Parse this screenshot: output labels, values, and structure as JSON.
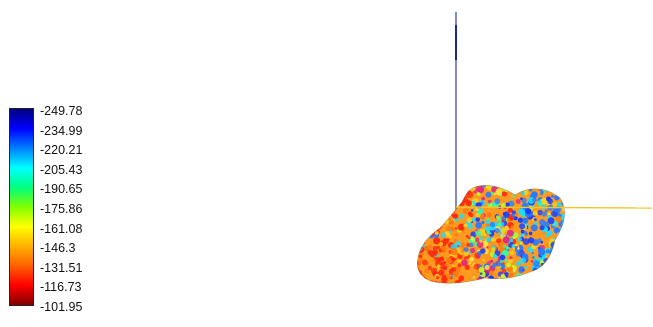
{
  "legend": {
    "ticks": [
      "-249.78",
      "-234.99",
      "-220.21",
      "-205.43",
      "-190.65",
      "-175.86",
      "-161.08",
      "-146.3",
      "-131.51",
      "-116.73",
      "-101.95"
    ],
    "colors": [
      "#000080",
      "#0000ff",
      "#0080ff",
      "#00ffff",
      "#00ff80",
      "#80ff00",
      "#ffff00",
      "#ffb000",
      "#ff6000",
      "#ff0000",
      "#800000"
    ]
  },
  "axes": {
    "vertical_color": "#2a3fa0",
    "horizontal_color": "#f2c42a"
  },
  "surface": {
    "palette": [
      "#ff2a10",
      "#ff7a10",
      "#ffd21a",
      "#b8ff2a",
      "#2affb0",
      "#1ae0ff",
      "#2a7aff",
      "#1a3aff",
      "#e02a80",
      "#ffe040"
    ]
  }
}
